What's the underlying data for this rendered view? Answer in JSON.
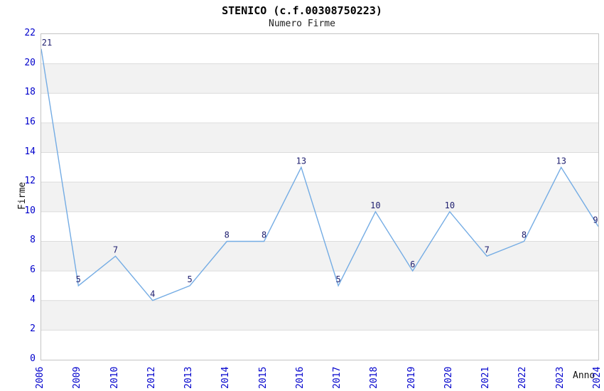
{
  "chart_data": {
    "type": "line",
    "title": "STENICO (c.f.00308750223)",
    "subtitle": "Numero Firme",
    "xlabel": "Anno",
    "ylabel": "Firme",
    "categories": [
      "2006",
      "2009",
      "2010",
      "2012",
      "2013",
      "2014",
      "2015",
      "2016",
      "2017",
      "2018",
      "2019",
      "2020",
      "2021",
      "2022",
      "2023",
      "2024"
    ],
    "values": [
      21,
      5,
      7,
      4,
      5,
      8,
      8,
      13,
      5,
      10,
      6,
      10,
      7,
      8,
      13,
      9
    ],
    "ylim": [
      0,
      22
    ],
    "ytick_step": 2,
    "grid": "horizontal-bands-alternating",
    "legend": "none",
    "point_labels": "values-above-points",
    "colors": {
      "line": "#74ace4",
      "tick_label": "#0000cc",
      "point_label": "#202070",
      "band": "#f2f2f2",
      "gridline": "#dcdcdc",
      "plot_border": "#c4c4c4",
      "text": "#111111",
      "background": "#ffffff"
    }
  }
}
